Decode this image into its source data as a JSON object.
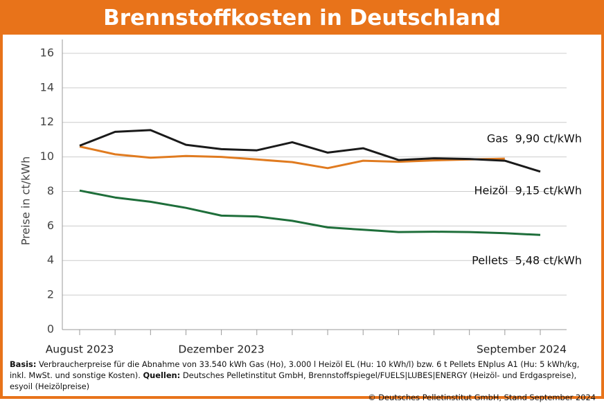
{
  "chart_data": {
    "type": "line",
    "title": "Brennstoffkosten in Deutschland",
    "y_label": "Preise in ct/kWh",
    "categories": [
      "August 2023",
      null,
      null,
      null,
      "Dezember 2023",
      null,
      null,
      null,
      null,
      null,
      null,
      null,
      null,
      "September 2024"
    ],
    "series": [
      {
        "name": "Gas",
        "label": "Gas  9,90 ct/kWh",
        "color": "#e07b20",
        "values": [
          10.6,
          10.15,
          9.95,
          10.05,
          10.0,
          9.85,
          9.7,
          9.35,
          9.78,
          9.72,
          9.8,
          9.85,
          9.9,
          null
        ]
      },
      {
        "name": "Heizöl",
        "label": "Heizöl  9,15 ct/kWh",
        "color": "#1a1a1a",
        "values": [
          10.65,
          11.45,
          11.55,
          10.7,
          10.45,
          10.38,
          10.85,
          10.25,
          10.5,
          9.82,
          9.92,
          9.88,
          9.78,
          9.15
        ]
      },
      {
        "name": "Pellets",
        "label": "Pellets  5,48 ct/kWh",
        "color": "#1e6e3a",
        "values": [
          8.05,
          7.65,
          7.4,
          7.05,
          6.6,
          6.55,
          6.3,
          5.92,
          5.78,
          5.65,
          5.67,
          5.65,
          5.58,
          5.48
        ]
      }
    ],
    "ylim": [
      0,
      16.8
    ],
    "yticks": [
      0,
      2,
      4,
      6,
      8,
      10,
      12,
      14,
      16
    ],
    "grid": true,
    "footnote": {
      "basis_label": "Basis:",
      "basis_text": " Verbraucherpreise für die Abnahme von 33.540 kWh Gas (Ho), 3.000 l Heizöl EL (Hu: 10 kWh/l) bzw. 6 t Pellets ENplus A1 (Hu: 5 kWh/kg, inkl. MwSt. und sonstige Kosten).",
      "sources_label": "Quellen:",
      "sources_text": " Deutsches Pelletinstitut GmbH, Brennstoffspiegel/FUELS|LUBES|ENERGY (Heizöl- und Erdgaspreise), esyoil (Heizölpreise)",
      "copyright": "© Deutsches Pelletinstitut GmbH, Stand September 2024"
    }
  }
}
